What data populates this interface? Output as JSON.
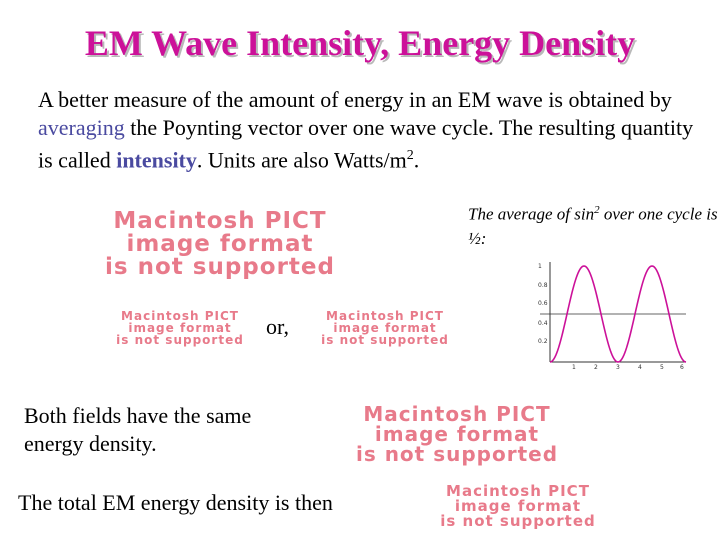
{
  "title": "EM Wave Intensity, Energy Density",
  "intro": {
    "part1": "A better measure of the amount of energy in an EM wave is obtained by ",
    "averaging": "averaging",
    "part2": " the Poynting vector over one wave cycle. The resulting quantity is called ",
    "intensity": "intensity",
    "part3": ". Units are also Watts/m",
    "sup": "2",
    "part4": "."
  },
  "note": {
    "part1": "The average of sin",
    "sup": "2",
    "part2": " over one cycle is ½:"
  },
  "pict_placeholder": {
    "line1": "Macintosh PICT",
    "line2": "image format",
    "line3": "is not supported"
  },
  "or_text": "or,",
  "fields_text": "Both fields have the same energy density.",
  "total_text": "The total EM energy density is then",
  "graph": {
    "y_ticks": [
      "1",
      "0.8",
      "0.6",
      "0.4",
      "0.2"
    ],
    "x_ticks": [
      "1",
      "2",
      "3",
      "4",
      "5",
      "6"
    ],
    "colors": {
      "curve": "#cc1199",
      "axis": "#333333",
      "midline": "#333333"
    }
  }
}
